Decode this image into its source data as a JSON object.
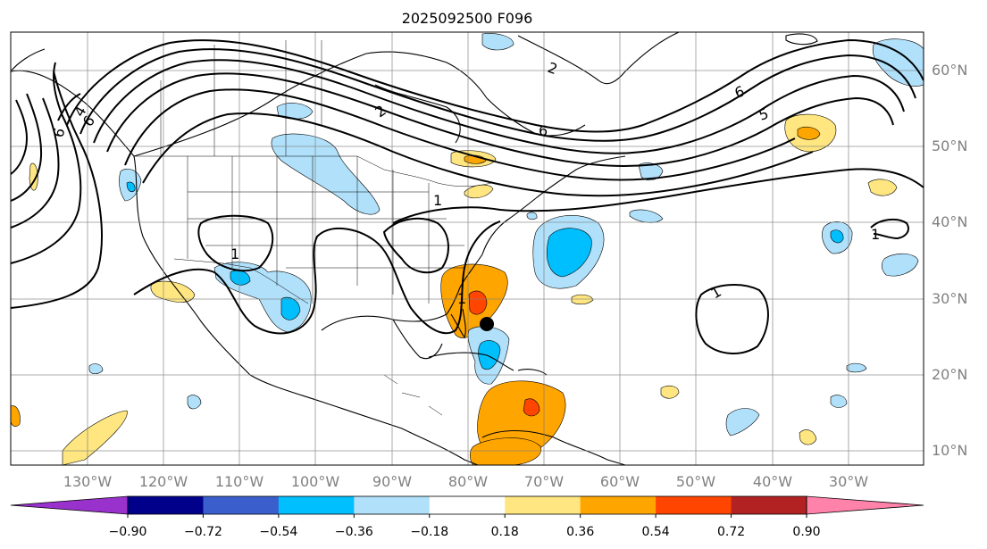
{
  "title": "2025092500 F096",
  "map": {
    "lon_labels": [
      "130°W",
      "120°W",
      "110°W",
      "100°W",
      "90°W",
      "80°W",
      "70°W",
      "60°W",
      "50°W",
      "40°W",
      "30°W"
    ],
    "lat_labels": [
      "10°N",
      "20°N",
      "30°N",
      "40°N",
      "50°N",
      "60°N"
    ],
    "contour_labels": [
      "6",
      "4",
      "6",
      "2",
      "6",
      "2",
      "6",
      "5",
      "1",
      "1",
      "1",
      "1",
      "1"
    ],
    "marker": "black-dot"
  },
  "colorbar": {
    "ticks": [
      "−0.90",
      "−0.72",
      "−0.54",
      "−0.36",
      "−0.18",
      "0.18",
      "0.36",
      "0.54",
      "0.72",
      "0.90"
    ],
    "colors": [
      "#9932cc",
      "#00008b",
      "#3a5fcd",
      "#00bfff",
      "#b0e0fa",
      "#ffffff",
      "#ffe680",
      "#ffa500",
      "#ff4500",
      "#b22222",
      "#ff82ab"
    ]
  }
}
